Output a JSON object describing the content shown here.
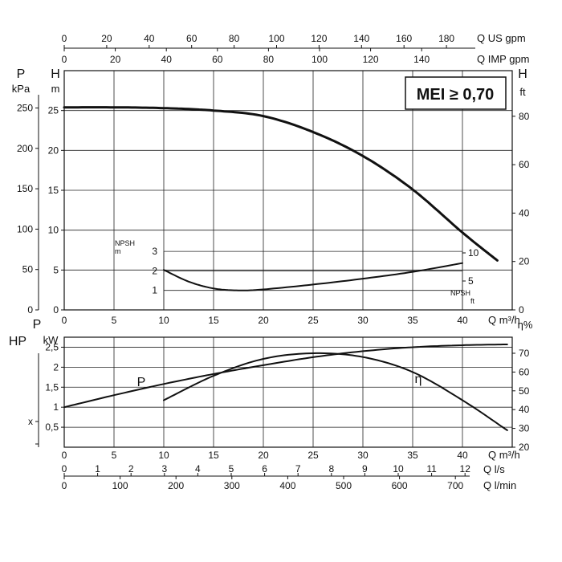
{
  "chart_data": [
    {
      "type": "line",
      "title": "",
      "top_axes": [
        {
          "name": "Q US gpm",
          "ticks": [
            "0",
            "20",
            "40",
            "60",
            "80",
            "100",
            "120",
            "140",
            "160",
            "180"
          ]
        },
        {
          "name": "Q IMP gpm",
          "ticks": [
            "0",
            "20",
            "40",
            "60",
            "80",
            "100",
            "120",
            "140"
          ]
        }
      ],
      "xlabel": "Q m³/h",
      "x_ticks": [
        "0",
        "5",
        "10",
        "15",
        "20",
        "25",
        "30",
        "35",
        "40"
      ],
      "xlim": [
        0,
        45
      ],
      "left_axes": [
        {
          "name": "P",
          "unit": "kPa",
          "ticks": [
            "0",
            "50",
            "100",
            "150",
            "200",
            "250"
          ]
        },
        {
          "name": "H",
          "unit": "m",
          "ticks": [
            "0",
            "5",
            "10",
            "15",
            "20",
            "25"
          ]
        }
      ],
      "right_axis": {
        "name": "H",
        "unit": "ft",
        "ticks": [
          "0",
          "20",
          "40",
          "60",
          "80"
        ]
      },
      "ylim": [
        0,
        30
      ],
      "badge": "MEI ≥ 0,70",
      "series": [
        {
          "x": [
            0,
            5,
            10,
            15,
            20,
            25,
            30,
            35,
            40,
            43.5
          ],
          "values": [
            25.4,
            25.4,
            25.3,
            25.0,
            24.3,
            22.3,
            19.3,
            15.1,
            9.7,
            6.2
          ]
        }
      ],
      "npsh": {
        "label_m": "NPSH\nm",
        "label_ft": "NPSH\nft",
        "left_ticks": [
          "1",
          "2",
          "3"
        ],
        "right_ticks": [
          "5",
          "10"
        ],
        "ylim": [
          0,
          3.5
        ],
        "x": [
          10,
          12.5,
          15,
          17.5,
          20,
          25,
          30,
          35,
          40
        ],
        "values": [
          2.05,
          1.45,
          1.1,
          1.0,
          1.05,
          1.3,
          1.6,
          1.95,
          2.4
        ]
      }
    },
    {
      "type": "line",
      "title": "",
      "xlabel": "Q m³/h",
      "x_ticks": [
        "0",
        "5",
        "10",
        "15",
        "20",
        "25",
        "30",
        "35",
        "40"
      ],
      "xlim": [
        0,
        45
      ],
      "left_axes": [
        {
          "name": "HP",
          "ticks": [
            "x"
          ]
        },
        {
          "name": "P",
          "unit": "kW",
          "ticks": [
            "0,5",
            "1",
            "1,5",
            "2",
            "2,5"
          ]
        }
      ],
      "right_axis": {
        "name": "η%",
        "ticks": [
          "20",
          "30",
          "40",
          "50",
          "60",
          "70"
        ]
      },
      "ylim": [
        0,
        2.75
      ],
      "series": [
        {
          "name": "P",
          "x": [
            0,
            5,
            10,
            15,
            20,
            25,
            30,
            35,
            40,
            44.5
          ],
          "values": [
            1.0,
            1.3,
            1.58,
            1.83,
            2.05,
            2.25,
            2.4,
            2.5,
            2.55,
            2.57
          ]
        },
        {
          "name": "η",
          "x": [
            10,
            15,
            20,
            25,
            30,
            35,
            40,
            44.5
          ],
          "values": [
            45,
            58,
            67,
            70,
            68,
            60,
            45,
            29
          ]
        }
      ],
      "bottom_axes": [
        {
          "name": "Q l/s",
          "ticks": [
            "0",
            "1",
            "2",
            "3",
            "4",
            "5",
            "6",
            "7",
            "8",
            "9",
            "10",
            "11",
            "12"
          ]
        },
        {
          "name": "Q l/min",
          "ticks": [
            "0",
            "100",
            "200",
            "300",
            "400",
            "500",
            "600",
            "700"
          ]
        }
      ]
    }
  ]
}
